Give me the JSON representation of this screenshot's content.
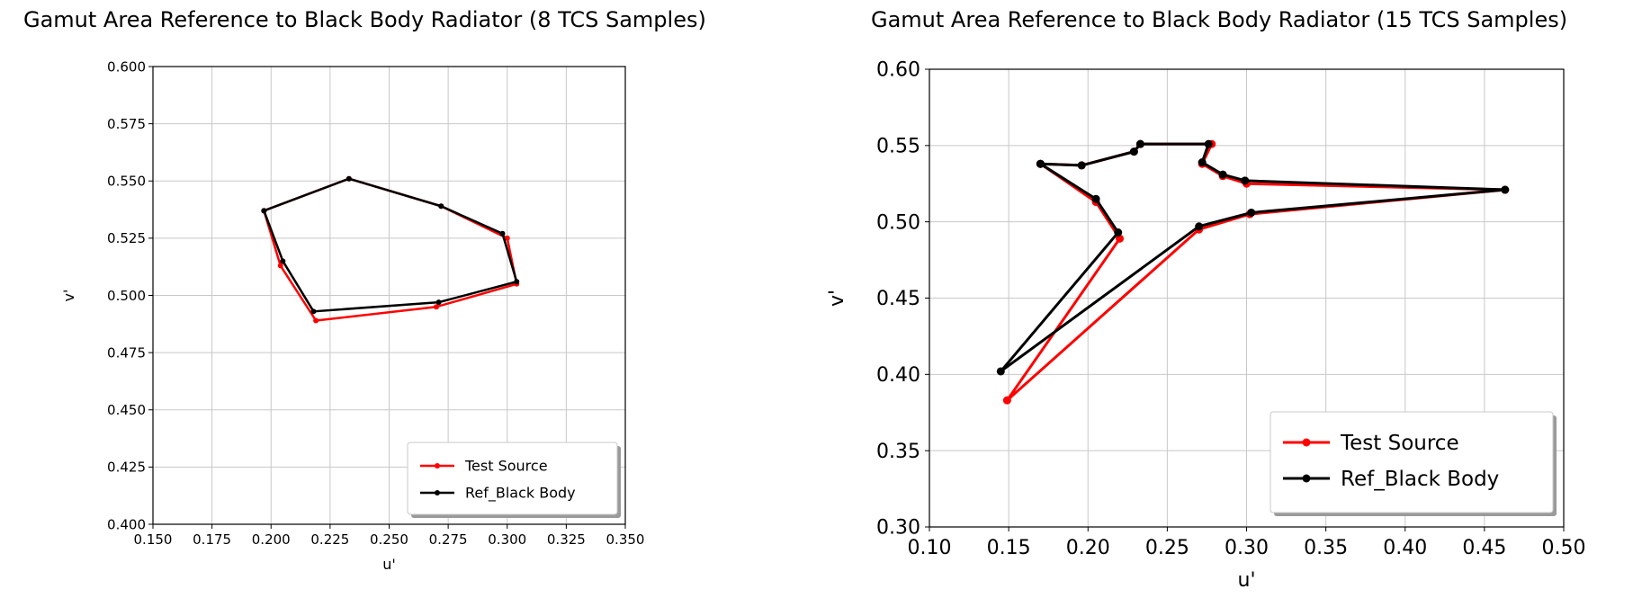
{
  "charts_header": {
    "left_title": "Gamut Area Reference to Black Body Radiator (8 TCS Samples)",
    "right_title": "Gamut Area Reference to Black Body Radiator (15 TCS Samples)"
  },
  "colors": {
    "test": "#ff0000",
    "ref": "#000000",
    "grid": "#c8c8c8"
  },
  "chart_data": [
    {
      "type": "line",
      "title": "Gamut Area Reference to Black Body Radiator (8 TCS Samples)",
      "xlabel": "u'",
      "ylabel": "v'",
      "xlim": [
        0.15,
        0.35
      ],
      "ylim": [
        0.4,
        0.6
      ],
      "xticks": [
        "0.150",
        "0.175",
        "0.200",
        "0.225",
        "0.250",
        "0.275",
        "0.300",
        "0.325",
        "0.350"
      ],
      "yticks": [
        "0.400",
        "0.425",
        "0.450",
        "0.475",
        "0.500",
        "0.525",
        "0.550",
        "0.575",
        "0.600"
      ],
      "grid": true,
      "legend_position": "bottom-right",
      "series": [
        {
          "name": "Test Source",
          "color": "#ff0000",
          "x": [
            0.197,
            0.204,
            0.219,
            0.27,
            0.304,
            0.3,
            0.272,
            0.233,
            0.197
          ],
          "y": [
            0.537,
            0.513,
            0.489,
            0.495,
            0.505,
            0.525,
            0.539,
            0.551,
            0.537
          ]
        },
        {
          "name": "Ref_Black Body",
          "color": "#000000",
          "x": [
            0.197,
            0.205,
            0.218,
            0.271,
            0.304,
            0.298,
            0.272,
            0.233,
            0.197
          ],
          "y": [
            0.537,
            0.515,
            0.493,
            0.497,
            0.506,
            0.527,
            0.539,
            0.551,
            0.537
          ]
        }
      ]
    },
    {
      "type": "line",
      "title": "Gamut Area Reference to Black Body Radiator (15 TCS Samples)",
      "xlabel": "u'",
      "ylabel": "v'",
      "xlim": [
        0.1,
        0.5
      ],
      "ylim": [
        0.3,
        0.6
      ],
      "xticks": [
        "0.10",
        "0.15",
        "0.20",
        "0.25",
        "0.30",
        "0.35",
        "0.40",
        "0.45",
        "0.50"
      ],
      "yticks": [
        "0.30",
        "0.35",
        "0.40",
        "0.45",
        "0.50",
        "0.55",
        "0.60"
      ],
      "grid": true,
      "legend_position": "bottom-right",
      "series": [
        {
          "name": "Test Source",
          "color": "#ff0000",
          "x": [
            0.17,
            0.196,
            0.229,
            0.233,
            0.278,
            0.272,
            0.285,
            0.3,
            0.463,
            0.302,
            0.27,
            0.149,
            0.22,
            0.205,
            0.17
          ],
          "y": [
            0.538,
            0.537,
            0.546,
            0.551,
            0.551,
            0.538,
            0.53,
            0.525,
            0.521,
            0.505,
            0.495,
            0.383,
            0.489,
            0.513,
            0.538
          ]
        },
        {
          "name": "Ref_Black Body",
          "color": "#000000",
          "x": [
            0.17,
            0.196,
            0.229,
            0.233,
            0.276,
            0.272,
            0.285,
            0.299,
            0.463,
            0.303,
            0.27,
            0.145,
            0.219,
            0.205,
            0.17
          ],
          "y": [
            0.538,
            0.537,
            0.546,
            0.551,
            0.551,
            0.539,
            0.531,
            0.527,
            0.521,
            0.506,
            0.497,
            0.402,
            0.493,
            0.515,
            0.538
          ]
        }
      ]
    }
  ]
}
